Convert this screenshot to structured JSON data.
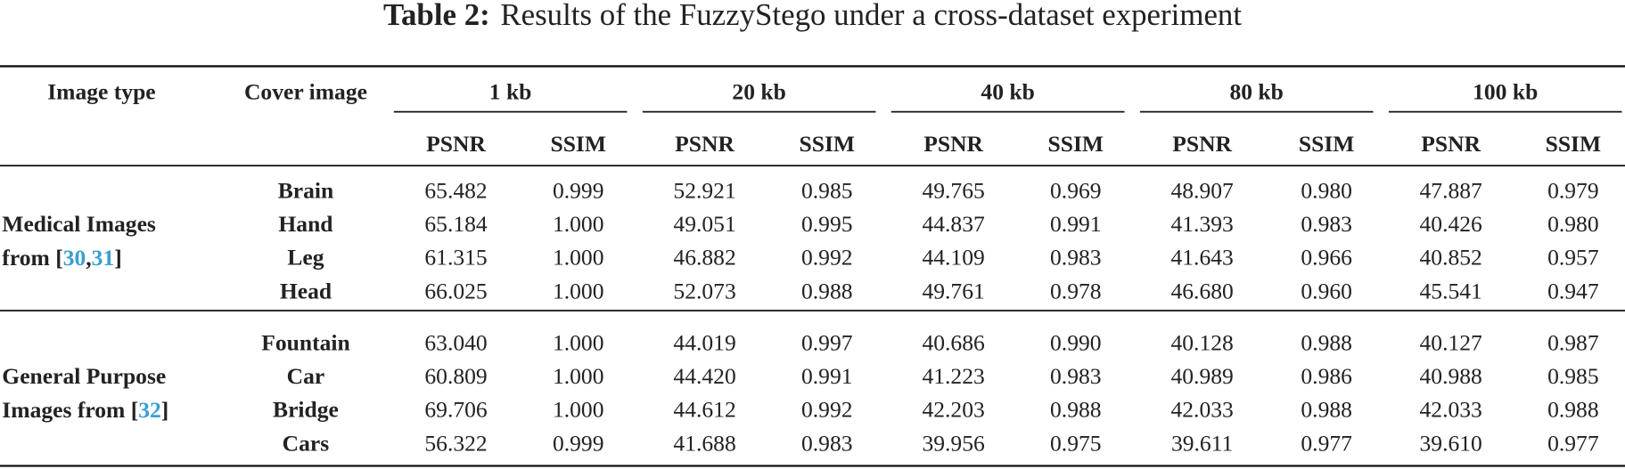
{
  "title": {
    "label": "Table 2:",
    "text": "Results of the FuzzyStego under a cross-dataset experiment"
  },
  "table": {
    "header": {
      "image_type": "Image type",
      "cover_image": "Cover image",
      "sizes": [
        "1 kb",
        "20 kb",
        "40 kb",
        "80 kb",
        "100 kb"
      ],
      "metrics": [
        "PSNR",
        "SSIM"
      ]
    },
    "groups": [
      {
        "label_lines": [
          [
            {
              "text": "Medical Images"
            }
          ],
          [
            {
              "text": "from ["
            },
            {
              "text": "30",
              "cite": true
            },
            {
              "text": ","
            },
            {
              "text": "31",
              "cite": true
            },
            {
              "text": "]"
            }
          ]
        ],
        "rows": [
          {
            "cover": "Brain",
            "values": [
              "65.482",
              "0.999",
              "52.921",
              "0.985",
              "49.765",
              "0.969",
              "48.907",
              "0.980",
              "47.887",
              "0.979"
            ]
          },
          {
            "cover": "Hand",
            "values": [
              "65.184",
              "1.000",
              "49.051",
              "0.995",
              "44.837",
              "0.991",
              "41.393",
              "0.983",
              "40.426",
              "0.980"
            ]
          },
          {
            "cover": "Leg",
            "values": [
              "61.315",
              "1.000",
              "46.882",
              "0.992",
              "44.109",
              "0.983",
              "41.643",
              "0.966",
              "40.852",
              "0.957"
            ]
          },
          {
            "cover": "Head",
            "values": [
              "66.025",
              "1.000",
              "52.073",
              "0.988",
              "49.761",
              "0.978",
              "46.680",
              "0.960",
              "45.541",
              "0.947"
            ]
          }
        ]
      },
      {
        "label_lines": [
          [
            {
              "text": "General Purpose"
            }
          ],
          [
            {
              "text": "Images from ["
            },
            {
              "text": "32",
              "cite": true
            },
            {
              "text": "]"
            }
          ]
        ],
        "rows": [
          {
            "cover": "Fountain",
            "values": [
              "63.040",
              "1.000",
              "44.019",
              "0.997",
              "40.686",
              "0.990",
              "40.128",
              "0.988",
              "40.127",
              "0.987"
            ]
          },
          {
            "cover": "Car",
            "values": [
              "60.809",
              "1.000",
              "44.420",
              "0.991",
              "41.223",
              "0.983",
              "40.989",
              "0.986",
              "40.988",
              "0.985"
            ]
          },
          {
            "cover": "Bridge",
            "values": [
              "69.706",
              "1.000",
              "44.612",
              "0.992",
              "42.203",
              "0.988",
              "42.033",
              "0.988",
              "42.033",
              "0.988"
            ]
          },
          {
            "cover": "Cars",
            "values": [
              "56.322",
              "0.999",
              "41.688",
              "0.983",
              "39.956",
              "0.975",
              "39.611",
              "0.977",
              "39.610",
              "0.977"
            ]
          }
        ]
      }
    ]
  }
}
